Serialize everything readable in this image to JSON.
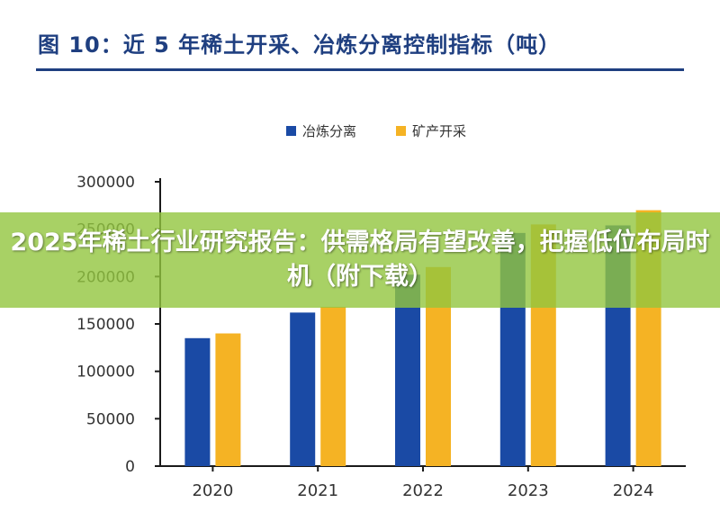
{
  "title": "图 10：近 5 年稀土开采、冶炼分离控制指标（吨）",
  "overlay_text": "2025年稀土行业研究报告：供需格局有望改善，把握低位布局时机（附下载）",
  "colors": {
    "smelting": "#1a4aa5",
    "mining": "#f5b324",
    "title": "#1f3f80",
    "overlay": "#92c63e"
  },
  "chart_data": {
    "type": "bar",
    "categories": [
      "2020",
      "2021",
      "2022",
      "2023",
      "2024"
    ],
    "series": [
      {
        "name": "冶炼分离",
        "values": [
          135000,
          162000,
          202000,
          246000,
          254000
        ],
        "color": "#1a4aa5"
      },
      {
        "name": "矿产开采",
        "values": [
          140000,
          168000,
          210000,
          255000,
          270000
        ],
        "color": "#f5b324"
      }
    ],
    "ylim": [
      0,
      300000
    ],
    "yticks": [
      "0",
      "50000",
      "100000",
      "150000",
      "200000",
      "250000",
      "300000"
    ],
    "grid": false,
    "legend": "top-center"
  }
}
